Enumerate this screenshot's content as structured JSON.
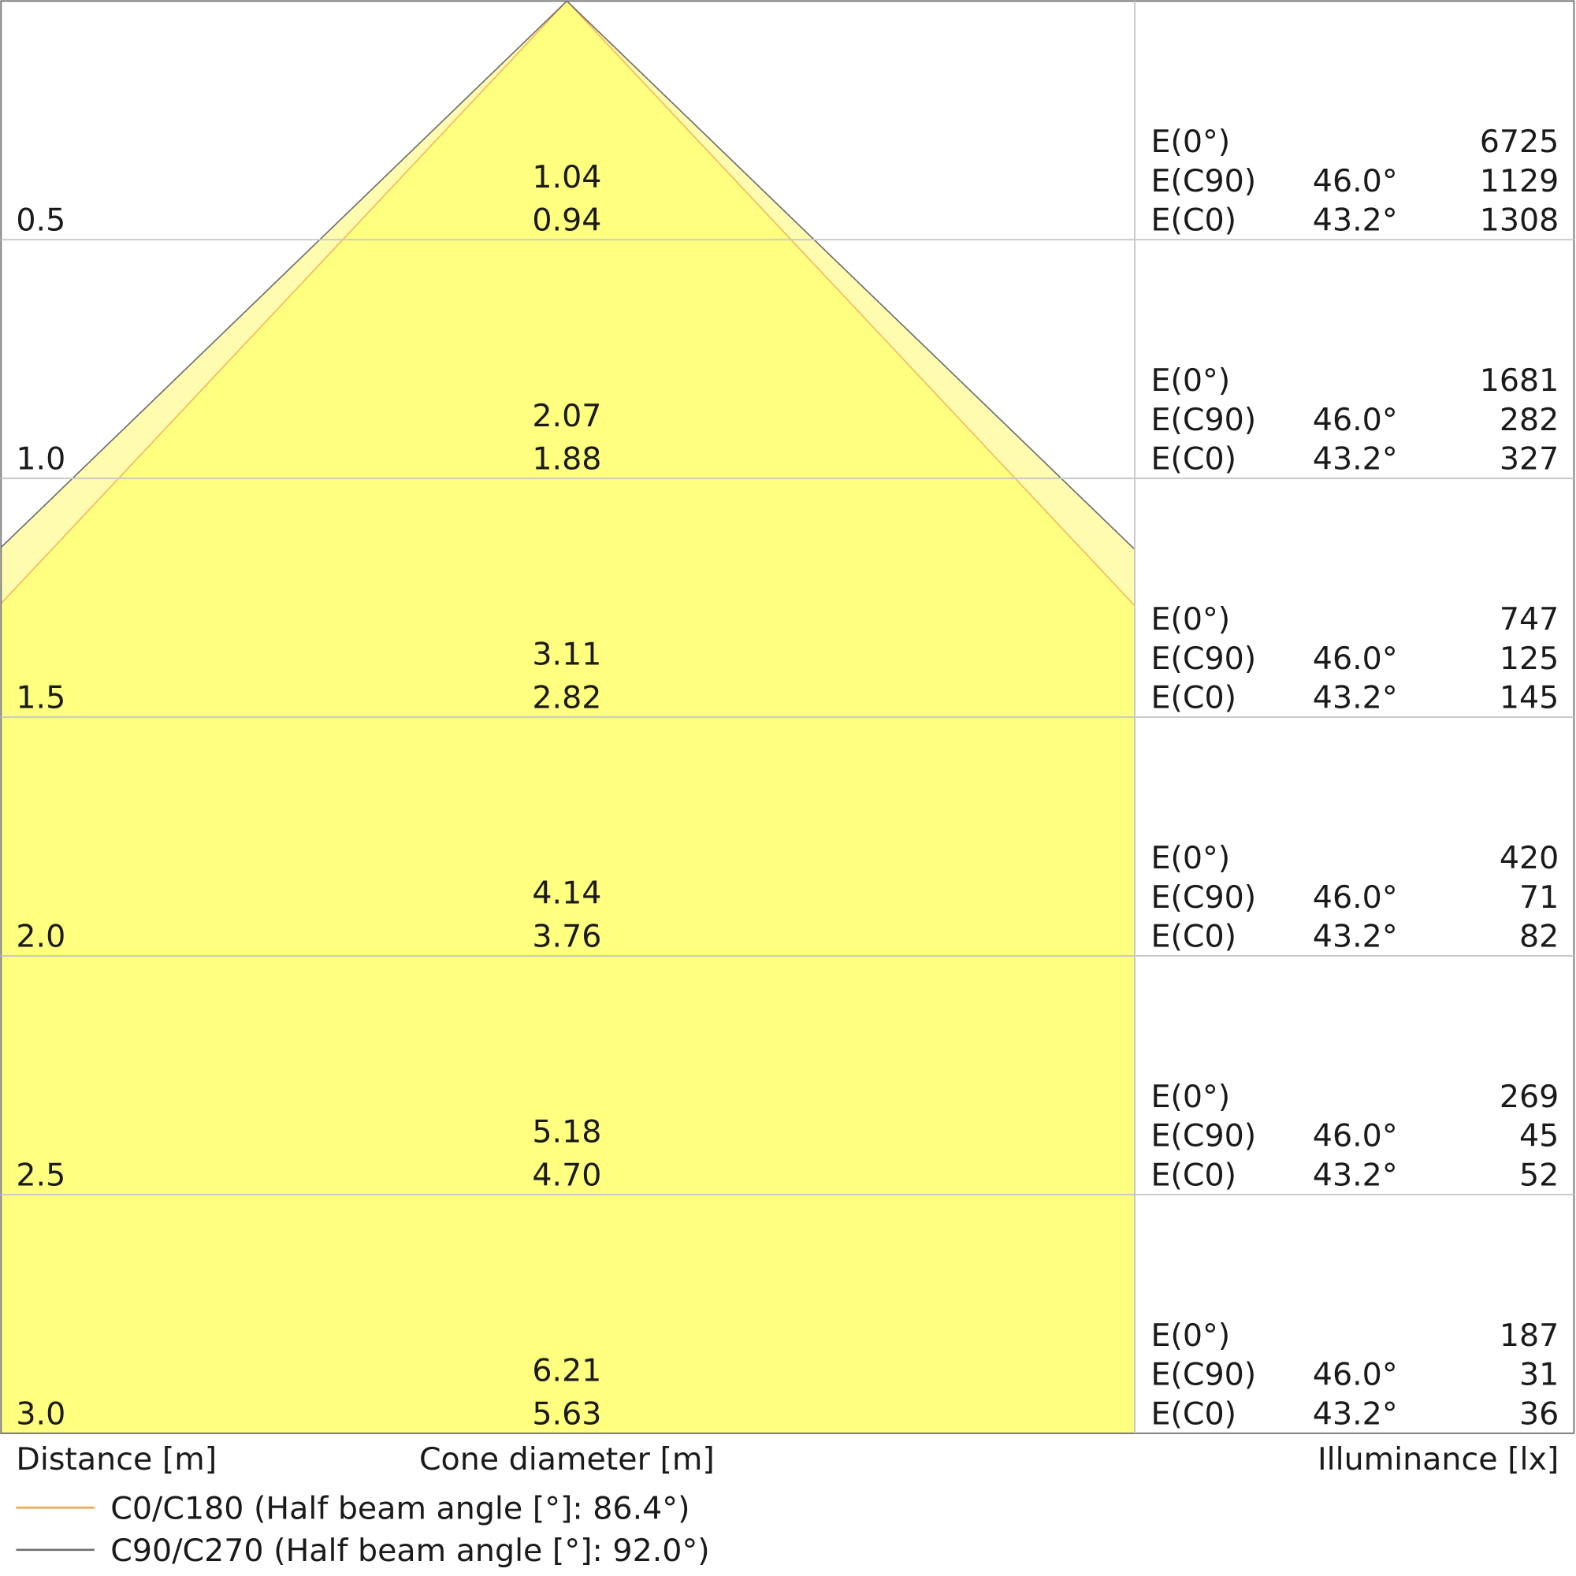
{
  "chart_data": {
    "type": "area",
    "distances": [
      0.5,
      1.0,
      1.5,
      2.0,
      2.5,
      3.0
    ],
    "distance_labels": [
      "0.5",
      "1.0",
      "1.5",
      "2.0",
      "2.5",
      "3.0"
    ],
    "cone_diameter_c90": [
      "1.04",
      "2.07",
      "3.11",
      "4.14",
      "5.18",
      "6.21"
    ],
    "cone_diameter_c0": [
      "0.94",
      "1.88",
      "2.82",
      "3.76",
      "4.70",
      "5.63"
    ],
    "illuminance_rows": [
      {
        "e0": "6725",
        "ec90": "1129",
        "ec0": "1308"
      },
      {
        "e0": "1681",
        "ec90": "282",
        "ec0": "327"
      },
      {
        "e0": "747",
        "ec90": "125",
        "ec0": "145"
      },
      {
        "e0": "420",
        "ec90": "71",
        "ec0": "82"
      },
      {
        "e0": "269",
        "ec90": "45",
        "ec0": "52"
      },
      {
        "e0": "187",
        "ec90": "31",
        "ec0": "36"
      }
    ],
    "row_labels": {
      "e0": "E(0°)",
      "ec90": "E(C90)",
      "ec0": "E(C0)"
    },
    "angle_c90": "46.0°",
    "angle_c0": "43.2°",
    "half_angle_c90_deg": 46.0,
    "half_angle_c0_deg": 43.2,
    "xlabel_distance": "Distance [m]",
    "xlabel_cone": "Cone diameter [m]",
    "xlabel_illuminance": "Illuminance [lx]",
    "ylim": [
      0,
      3.0
    ],
    "grid": true,
    "legend_position": "bottom-left",
    "series": [
      {
        "name": "C0/C180 (Half beam angle [°]: 86.4°)",
        "color": "#f5a04a"
      },
      {
        "name": "C90/C270 (Half beam angle [°]: 92.0°)",
        "color": "#707070"
      }
    ],
    "colors": {
      "inner_fill": "#ffff80",
      "outer_fill": "#fffcb0",
      "grid": "#c8c8c8"
    }
  }
}
